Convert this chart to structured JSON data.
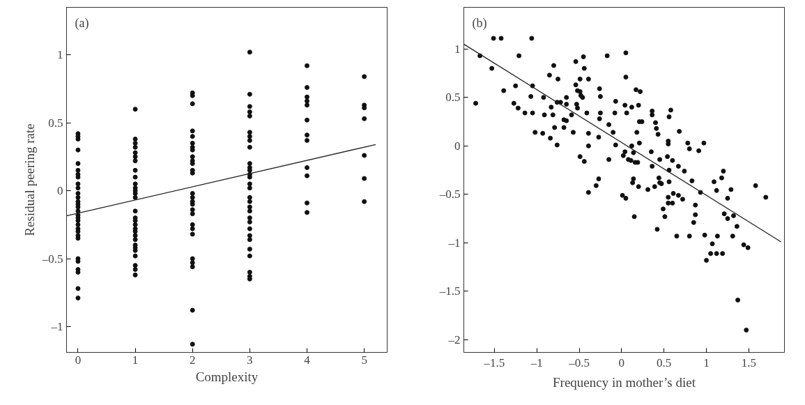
{
  "chart_data": [
    {
      "type": "scatter",
      "xlabel": "Complexity",
      "ylabel": "Residual peering rate",
      "annotations": [
        "(a)"
      ],
      "xlim": [
        -0.2,
        5.4
      ],
      "ylim": [
        -1.19,
        1.35
      ],
      "xticks": [
        0,
        1,
        2,
        3,
        4,
        5
      ],
      "yticks": [
        {
          "value": -1,
          "label": "–1"
        },
        {
          "value": -0.5,
          "label": "–0.5"
        },
        0,
        0.5,
        1
      ],
      "grid": false,
      "series": [
        {
          "marker": "circle",
          "color": "#111111",
          "x": [
            0,
            0,
            0,
            0,
            0,
            0,
            0,
            0,
            0,
            0,
            0,
            0,
            0,
            0,
            0,
            0,
            0,
            0,
            0,
            0,
            0,
            0,
            0,
            0,
            0,
            0,
            0,
            0,
            0,
            0,
            1,
            1,
            1,
            1,
            1,
            1,
            1,
            1,
            1,
            1,
            1,
            1,
            1,
            1,
            1,
            1,
            1,
            1,
            1,
            1,
            1,
            1,
            1,
            1,
            1,
            1,
            1,
            1,
            1,
            2,
            2,
            2,
            2,
            2,
            2,
            2,
            2,
            2,
            2,
            2,
            2,
            2,
            2,
            2,
            2,
            2,
            2,
            2,
            2,
            2,
            2,
            2,
            2,
            2,
            2,
            2,
            3,
            3,
            3,
            3,
            3,
            3,
            3,
            3,
            3,
            3,
            3,
            3,
            3,
            3,
            3,
            3,
            3,
            3,
            3,
            3,
            3,
            3,
            3,
            3,
            3,
            3,
            3,
            3,
            3,
            3,
            4,
            4,
            4,
            4,
            4,
            4,
            4,
            4,
            4,
            4,
            4,
            4,
            5,
            5,
            5,
            5,
            5,
            5,
            5
          ],
          "values": [
            0.42,
            0.4,
            0.38,
            0.3,
            0.2,
            0.15,
            0.12,
            0.1,
            0.05,
            0.02,
            -0.02,
            -0.05,
            -0.08,
            -0.1,
            -0.12,
            -0.15,
            -0.18,
            -0.2,
            -0.22,
            -0.25,
            -0.28,
            -0.3,
            -0.33,
            -0.35,
            -0.5,
            -0.52,
            -0.58,
            -0.6,
            -0.72,
            -0.79,
            0.6,
            0.38,
            0.35,
            0.32,
            0.28,
            0.25,
            0.22,
            0.15,
            0.1,
            0.05,
            0.02,
            0,
            -0.02,
            -0.05,
            -0.15,
            -0.2,
            -0.22,
            -0.25,
            -0.28,
            -0.3,
            -0.33,
            -0.36,
            -0.4,
            -0.42,
            -0.44,
            -0.48,
            -0.55,
            -0.58,
            -0.62,
            0.72,
            0.7,
            0.64,
            0.44,
            0.4,
            0.35,
            0.32,
            0.3,
            0.25,
            0.22,
            0.2,
            0.15,
            0.13,
            -0.02,
            -0.05,
            -0.08,
            -0.1,
            -0.14,
            -0.17,
            -0.25,
            -0.28,
            -0.32,
            -0.5,
            -0.53,
            -0.56,
            -0.88,
            -1.13,
            1.02,
            0.71,
            0.62,
            0.58,
            0.55,
            0.43,
            0.4,
            0.37,
            0.32,
            0.2,
            0.17,
            0.15,
            0.12,
            0.1,
            0.05,
            0.02,
            -0.05,
            -0.08,
            -0.12,
            -0.15,
            -0.2,
            -0.23,
            -0.28,
            -0.33,
            -0.36,
            -0.43,
            -0.48,
            -0.6,
            -0.63,
            -0.65,
            0.92,
            0.76,
            0.69,
            0.66,
            0.63,
            0.52,
            0.41,
            0.37,
            0.17,
            0.11,
            -0.09,
            -0.16,
            0.84,
            0.63,
            0.61,
            0.53,
            0.26,
            0.09,
            -0.08
          ]
        },
        {
          "type": "line",
          "marker": "none",
          "color": "#222222",
          "line_style": "solid",
          "x": [
            -0.2,
            5.2
          ],
          "values": [
            -0.185,
            0.34
          ]
        }
      ]
    },
    {
      "type": "scatter",
      "xlabel": "Frequency in mother’s diet",
      "annotations": [
        "(b)"
      ],
      "xlim": [
        -1.86,
        1.92
      ],
      "ylim": [
        -2.13,
        1.43
      ],
      "xticks": [
        {
          "value": -1.5,
          "label": "–1.5"
        },
        {
          "value": -1,
          "label": "–1"
        },
        {
          "value": -0.5,
          "label": "–0.5"
        },
        0,
        0.5,
        1,
        1.5
      ],
      "yticks": [
        {
          "value": -2,
          "label": "–2"
        },
        {
          "value": -1.5,
          "label": "–1.5"
        },
        {
          "value": -1,
          "label": "–1"
        },
        {
          "value": -0.5,
          "label": "–0.5"
        },
        0,
        0.5,
        1
      ],
      "grid": false,
      "series": [
        {
          "marker": "circle",
          "color": "#111111",
          "x": [
            -1.72,
            -1.67,
            -1.53,
            -1.51,
            -1.42,
            -1.39,
            -1.27,
            -1.25,
            -1.21,
            -1.22,
            -1.14,
            -1.07,
            -1.06,
            -1.05,
            -1.05,
            -1.02,
            -0.93,
            -0.92,
            -0.91,
            -0.85,
            -0.84,
            -0.83,
            -0.81,
            -0.8,
            -0.79,
            -0.76,
            -0.75,
            -0.76,
            -0.72,
            -0.68,
            -0.68,
            -0.65,
            -0.65,
            -0.65,
            -0.59,
            -0.57,
            -0.54,
            -0.54,
            -0.53,
            -0.52,
            -0.52,
            -0.49,
            -0.48,
            -0.46,
            -0.45,
            -0.44,
            -0.49,
            -0.49,
            -0.44,
            -0.41,
            -0.39,
            -0.39,
            -0.39,
            -0.39,
            -0.3,
            -0.27,
            -0.27,
            -0.26,
            -0.25,
            -0.25,
            -0.26,
            -0.17,
            -0.15,
            -0.15,
            -0.1,
            -0.08,
            -0.07,
            -0.07,
            0.01,
            0.05,
            0.02,
            0.04,
            0.05,
            0.05,
            0.04,
            0.06,
            0.08,
            0.11,
            0.12,
            0.12,
            0.14,
            0.13,
            0.14,
            0.16,
            0.17,
            0.18,
            0.19,
            0.2,
            0.2,
            0.21,
            0.22,
            0.21,
            0.24,
            0.31,
            0.35,
            0.36,
            0.36,
            0.36,
            0.39,
            0.4,
            0.41,
            0.43,
            0.44,
            0.45,
            0.45,
            0.47,
            0.54,
            0.55,
            0.55,
            0.56,
            0.56,
            0.55,
            0.56,
            0.58,
            0.6,
            0.61,
            0.67,
            0.67,
            0.68,
            0.72,
            0.74,
            0.78,
            0.8,
            0.83,
            0.91,
            0.93,
            0.97,
            1.09,
            1.12,
            1.18,
            1.2,
            1.25,
            1.29,
            1.58,
            1.7,
            0.15,
            0.42,
            0.49,
            0.51,
            0.55,
            0.6,
            0.65,
            0.8,
            0.85,
            0.87,
            0.87,
            0.98,
            1.0,
            1.07,
            1.05,
            1.12,
            1.13,
            1.19,
            1.21,
            1.25,
            1.31,
            1.32,
            1.36,
            1.37,
            1.44,
            1.49,
            1.47
          ],
          "values": [
            0.44,
            0.93,
            0.8,
            1.11,
            1.11,
            0.57,
            0.44,
            0.62,
            0.93,
            0.39,
            0.34,
            0.51,
            1.11,
            0.62,
            0.34,
            0.14,
            0.13,
            0.5,
            0.32,
            0.73,
            0.08,
            0.4,
            0.32,
            0.83,
            0.19,
            0.45,
            0.69,
            0.01,
            0.45,
            0.27,
            0.19,
            0.5,
            0.43,
            0.26,
            0.32,
            0.14,
            0.87,
            0.63,
            0.43,
            0.57,
            0.39,
            0.56,
            0.52,
            0.5,
            0.92,
            0.8,
            0.69,
            -0.11,
            -0.16,
            0.34,
            0.69,
            0.13,
            0.0,
            -0.48,
            -0.41,
            -0.34,
            0.09,
            0.59,
            0.51,
            0.34,
            0.28,
            0.93,
            -0.14,
            0.22,
            0.14,
            0.34,
            0.46,
            0.01,
            -0.51,
            -0.54,
            -0.1,
            -0.06,
            0.96,
            0.71,
            0.42,
            0.34,
            -0.14,
            -0.15,
            0.4,
            0.0,
            -0.07,
            -0.38,
            -0.34,
            -0.17,
            0.58,
            0.14,
            -0.17,
            -0.42,
            0.42,
            0.03,
            0.56,
            0.25,
            0.25,
            -0.45,
            -0.06,
            0.36,
            0.32,
            -0.21,
            -0.42,
            0.24,
            0.18,
            0.12,
            -0.33,
            -0.38,
            -0.14,
            -0.39,
            -0.11,
            0.05,
            0.02,
            -0.37,
            -0.25,
            -0.53,
            0.3,
            0.37,
            -0.15,
            -0.49,
            -0.21,
            -0.51,
            0.15,
            -0.55,
            -0.26,
            0.03,
            -0.03,
            -0.36,
            -0.05,
            -0.48,
            0.03,
            -0.37,
            -0.46,
            -0.33,
            -0.26,
            -0.54,
            -0.45,
            -0.41,
            -0.53,
            -0.73,
            -0.86,
            -0.65,
            -0.73,
            -0.59,
            -0.59,
            -0.93,
            -0.93,
            -0.79,
            -0.61,
            -0.71,
            -0.92,
            -1.18,
            -1.01,
            -1.11,
            -1.11,
            -0.93,
            -1.11,
            -0.7,
            -0.75,
            -0.93,
            -0.72,
            -0.83,
            -1.59,
            -1.02,
            -1.05,
            -1.9
          ]
        },
        {
          "type": "line",
          "marker": "none",
          "color": "#222222",
          "line_style": "solid",
          "x": [
            -1.86,
            1.88
          ],
          "values": [
            1.05,
            -0.99
          ]
        }
      ]
    }
  ]
}
